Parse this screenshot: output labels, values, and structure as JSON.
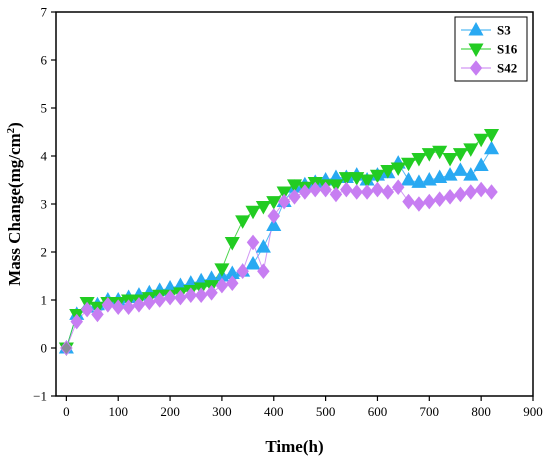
{
  "chart_data": {
    "type": "scatter",
    "xlabel": "Time(h)",
    "ylabel_main": "Mass Change(mg/cm",
    "ylabel_sup": "2",
    "ylabel_tail": ")",
    "xlim": [
      -20,
      900
    ],
    "ylim": [
      -1,
      7
    ],
    "xticks": [
      0,
      100,
      200,
      300,
      400,
      500,
      600,
      700,
      800,
      900
    ],
    "yticks": [
      -1,
      0,
      1,
      2,
      3,
      4,
      5,
      6,
      7
    ],
    "grid": false,
    "legend_position": "top-right",
    "series": [
      {
        "name": "S3",
        "color": "#29a9f2",
        "marker": "triangle-up",
        "x": [
          0,
          20,
          40,
          60,
          80,
          100,
          120,
          140,
          160,
          180,
          200,
          220,
          240,
          260,
          280,
          300,
          320,
          340,
          360,
          380,
          400,
          420,
          440,
          460,
          480,
          500,
          520,
          540,
          560,
          580,
          600,
          620,
          640,
          660,
          680,
          700,
          720,
          740,
          760,
          780,
          800,
          820
        ],
        "y": [
          0,
          0.7,
          0.85,
          0.9,
          1.0,
          1.0,
          1.05,
          1.1,
          1.15,
          1.2,
          1.25,
          1.3,
          1.35,
          1.4,
          1.45,
          1.5,
          1.55,
          1.6,
          1.75,
          2.1,
          2.55,
          3.05,
          3.35,
          3.4,
          3.45,
          3.5,
          3.55,
          3.55,
          3.6,
          3.5,
          3.6,
          3.65,
          3.85,
          3.5,
          3.45,
          3.5,
          3.55,
          3.6,
          3.7,
          3.6,
          3.8,
          4.15
        ]
      },
      {
        "name": "S16",
        "color": "#22cc22",
        "marker": "triangle-down",
        "x": [
          0,
          20,
          40,
          60,
          80,
          100,
          120,
          140,
          160,
          180,
          200,
          220,
          240,
          260,
          280,
          300,
          320,
          340,
          360,
          380,
          400,
          420,
          440,
          460,
          480,
          500,
          520,
          540,
          560,
          580,
          600,
          620,
          640,
          660,
          680,
          700,
          720,
          740,
          760,
          780,
          800,
          820
        ],
        "y": [
          0,
          0.7,
          0.95,
          0.85,
          0.95,
          0.95,
          1.0,
          1.0,
          1.05,
          1.1,
          1.1,
          1.15,
          1.2,
          1.25,
          1.3,
          1.65,
          2.2,
          2.65,
          2.85,
          2.95,
          3.05,
          3.25,
          3.4,
          3.35,
          3.45,
          3.4,
          3.4,
          3.55,
          3.55,
          3.5,
          3.6,
          3.7,
          3.75,
          3.85,
          3.95,
          4.05,
          4.1,
          3.95,
          4.05,
          4.15,
          4.35,
          4.45
        ]
      },
      {
        "name": "S42",
        "color": "#c77ef2",
        "marker": "diamond",
        "x": [
          0,
          20,
          40,
          60,
          80,
          100,
          120,
          140,
          160,
          180,
          200,
          220,
          240,
          260,
          280,
          300,
          320,
          340,
          360,
          380,
          400,
          420,
          440,
          460,
          480,
          500,
          520,
          540,
          560,
          580,
          600,
          620,
          640,
          660,
          680,
          700,
          720,
          740,
          760,
          780,
          800,
          820
        ],
        "y": [
          0,
          0.55,
          0.8,
          0.7,
          0.9,
          0.85,
          0.85,
          0.9,
          0.95,
          1.0,
          1.05,
          1.05,
          1.1,
          1.1,
          1.15,
          1.3,
          1.35,
          1.6,
          2.2,
          1.6,
          2.75,
          3.05,
          3.15,
          3.25,
          3.3,
          3.3,
          3.2,
          3.3,
          3.25,
          3.25,
          3.3,
          3.25,
          3.35,
          3.05,
          3.0,
          3.05,
          3.1,
          3.15,
          3.2,
          3.25,
          3.3,
          3.25
        ]
      }
    ]
  }
}
